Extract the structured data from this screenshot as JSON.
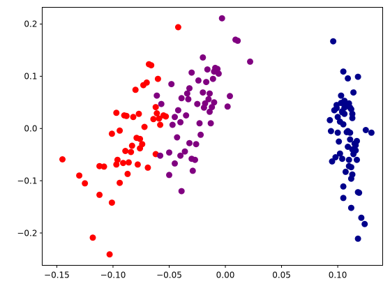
{
  "chart_data": {
    "type": "scatter",
    "title": "",
    "xlabel": "",
    "ylabel": "",
    "xlim": [
      -0.163,
      0.14
    ],
    "ylim": [
      -0.262,
      0.232
    ],
    "grid": false,
    "legend": "none",
    "x_ticks": [
      {
        "value": -0.15,
        "label": "−0.15"
      },
      {
        "value": -0.1,
        "label": "−0.10"
      },
      {
        "value": -0.05,
        "label": "−0.05"
      },
      {
        "value": 0.0,
        "label": "0.00"
      },
      {
        "value": 0.05,
        "label": "0.05"
      },
      {
        "value": 0.1,
        "label": "0.10"
      }
    ],
    "y_ticks": [
      {
        "value": -0.2,
        "label": "−0.2"
      },
      {
        "value": -0.1,
        "label": "−0.1"
      },
      {
        "value": 0.0,
        "label": "0.0"
      },
      {
        "value": 0.1,
        "label": "0.1"
      },
      {
        "value": 0.2,
        "label": "0.2"
      }
    ],
    "series": [
      {
        "color": "#ff0000",
        "points": [
          [
            -0.145,
            -0.059
          ],
          [
            -0.13,
            -0.09
          ],
          [
            -0.125,
            -0.105
          ],
          [
            -0.118,
            -0.209
          ],
          [
            -0.112,
            -0.127
          ],
          [
            -0.112,
            -0.072
          ],
          [
            -0.108,
            -0.073
          ],
          [
            -0.103,
            -0.241
          ],
          [
            -0.101,
            -0.142
          ],
          [
            -0.101,
            -0.01
          ],
          [
            -0.097,
            -0.069
          ],
          [
            -0.097,
            0.03
          ],
          [
            -0.096,
            -0.06
          ],
          [
            -0.094,
            -0.004
          ],
          [
            -0.094,
            -0.104
          ],
          [
            -0.091,
            -0.066
          ],
          [
            -0.09,
            0.025
          ],
          [
            -0.089,
            -0.043
          ],
          [
            -0.088,
            0.024
          ],
          [
            -0.087,
            -0.087
          ],
          [
            -0.086,
            -0.065
          ],
          [
            -0.084,
            -0.045
          ],
          [
            -0.083,
            -0.033
          ],
          [
            -0.082,
            0.022
          ],
          [
            -0.08,
            0.074
          ],
          [
            -0.079,
            -0.018
          ],
          [
            -0.078,
            -0.069
          ],
          [
            -0.077,
            0.028
          ],
          [
            -0.076,
            -0.038
          ],
          [
            -0.076,
            -0.02
          ],
          [
            -0.074,
            -0.03
          ],
          [
            -0.073,
            0.083
          ],
          [
            -0.072,
            0.003
          ],
          [
            -0.07,
            0.088
          ],
          [
            -0.069,
            -0.075
          ],
          [
            -0.068,
            0.123
          ],
          [
            -0.066,
            0.121
          ],
          [
            -0.064,
            0.018
          ],
          [
            -0.062,
            -0.049
          ],
          [
            -0.062,
            0.041
          ],
          [
            -0.061,
            0.029
          ],
          [
            -0.06,
            0.095
          ],
          [
            -0.059,
            0.019
          ],
          [
            -0.058,
            0.007
          ],
          [
            -0.055,
            0.025
          ],
          [
            -0.053,
            0.023
          ],
          [
            -0.042,
            0.194
          ]
        ]
      },
      {
        "color": "#800080",
        "points": [
          [
            -0.061,
            0.063
          ],
          [
            -0.058,
            -0.052
          ],
          [
            -0.057,
            0.047
          ],
          [
            -0.05,
            -0.089
          ],
          [
            -0.05,
            -0.046
          ],
          [
            -0.048,
            0.085
          ],
          [
            -0.047,
            0.007
          ],
          [
            -0.045,
            0.022
          ],
          [
            -0.045,
            -0.067
          ],
          [
            -0.043,
            -0.017
          ],
          [
            -0.042,
            0.035
          ],
          [
            -0.04,
            -0.052
          ],
          [
            -0.04,
            0.012
          ],
          [
            -0.039,
            -0.12
          ],
          [
            -0.039,
            0.058
          ],
          [
            -0.036,
            -0.044
          ],
          [
            -0.035,
            0.025
          ],
          [
            -0.034,
            0.067
          ],
          [
            -0.033,
            0.056
          ],
          [
            -0.032,
            -0.028
          ],
          [
            -0.032,
            0.077
          ],
          [
            -0.03,
            -0.058
          ],
          [
            -0.03,
            0.107
          ],
          [
            -0.029,
            -0.081
          ],
          [
            -0.027,
            -0.06
          ],
          [
            -0.026,
            -0.03
          ],
          [
            -0.025,
            0.047
          ],
          [
            -0.024,
            0.092
          ],
          [
            -0.023,
            0.01
          ],
          [
            -0.022,
            -0.012
          ],
          [
            -0.02,
            0.136
          ],
          [
            -0.02,
            0.069
          ],
          [
            -0.019,
            0.04
          ],
          [
            -0.018,
            0.048
          ],
          [
            -0.017,
            0.089
          ],
          [
            -0.016,
            0.113
          ],
          [
            -0.015,
            0.056
          ],
          [
            -0.014,
            0.067
          ],
          [
            -0.014,
            0.032
          ],
          [
            -0.013,
            0.01
          ],
          [
            -0.012,
            0.041
          ],
          [
            -0.011,
            0.095
          ],
          [
            -0.01,
            0.109
          ],
          [
            -0.01,
            0.05
          ],
          [
            -0.009,
            0.116
          ],
          [
            -0.007,
            0.114
          ],
          [
            -0.006,
            0.105
          ],
          [
            -0.003,
            0.211
          ],
          [
            0.002,
            0.042
          ],
          [
            0.004,
            0.062
          ],
          [
            0.009,
            0.17
          ],
          [
            0.011,
            0.168
          ],
          [
            0.022,
            0.128
          ]
        ]
      },
      {
        "color": "#00008b",
        "points": [
          [
            0.093,
            0.016
          ],
          [
            0.094,
            -0.005
          ],
          [
            0.095,
            -0.063
          ],
          [
            0.096,
            0.167
          ],
          [
            0.097,
            0.035
          ],
          [
            0.098,
            -0.055
          ],
          [
            0.099,
            0.039
          ],
          [
            0.099,
            0.045
          ],
          [
            0.1,
            -0.008
          ],
          [
            0.1,
            0.022
          ],
          [
            0.101,
            -0.025
          ],
          [
            0.102,
            0.013
          ],
          [
            0.102,
            -0.048
          ],
          [
            0.103,
            0.063
          ],
          [
            0.103,
            0.049
          ],
          [
            0.104,
            0.033
          ],
          [
            0.104,
            0.031
          ],
          [
            0.104,
            -0.058
          ],
          [
            0.105,
            0.109
          ],
          [
            0.105,
            0.008
          ],
          [
            0.105,
            -0.111
          ],
          [
            0.105,
            -0.133
          ],
          [
            0.106,
            0.04
          ],
          [
            0.106,
            0.053
          ],
          [
            0.106,
            0.028
          ],
          [
            0.107,
            -0.083
          ],
          [
            0.107,
            0.044
          ],
          [
            0.108,
            -0.007
          ],
          [
            0.109,
            0.096
          ],
          [
            0.109,
            -0.005
          ],
          [
            0.109,
            -0.035
          ],
          [
            0.11,
            -0.06
          ],
          [
            0.11,
            -0.072
          ],
          [
            0.11,
            0.048
          ],
          [
            0.111,
            -0.008
          ],
          [
            0.111,
            0.04
          ],
          [
            0.111,
            -0.021
          ],
          [
            0.112,
            0.037
          ],
          [
            0.112,
            -0.096
          ],
          [
            0.112,
            -0.152
          ],
          [
            0.112,
            -0.074
          ],
          [
            0.113,
            0.028
          ],
          [
            0.113,
            -0.04
          ],
          [
            0.113,
            -0.088
          ],
          [
            0.113,
            0.02
          ],
          [
            0.114,
            -0.049
          ],
          [
            0.114,
            0.069
          ],
          [
            0.115,
            -0.029
          ],
          [
            0.116,
            -0.042
          ],
          [
            0.116,
            -0.032
          ],
          [
            0.117,
            -0.06
          ],
          [
            0.117,
            -0.024
          ],
          [
            0.118,
            0.099
          ],
          [
            0.118,
            -0.211
          ],
          [
            0.118,
            -0.122
          ],
          [
            0.119,
            -0.123
          ],
          [
            0.121,
            -0.171
          ],
          [
            0.124,
            -0.183
          ],
          [
            0.125,
            -0.003
          ],
          [
            0.13,
            -0.008
          ]
        ]
      }
    ]
  }
}
